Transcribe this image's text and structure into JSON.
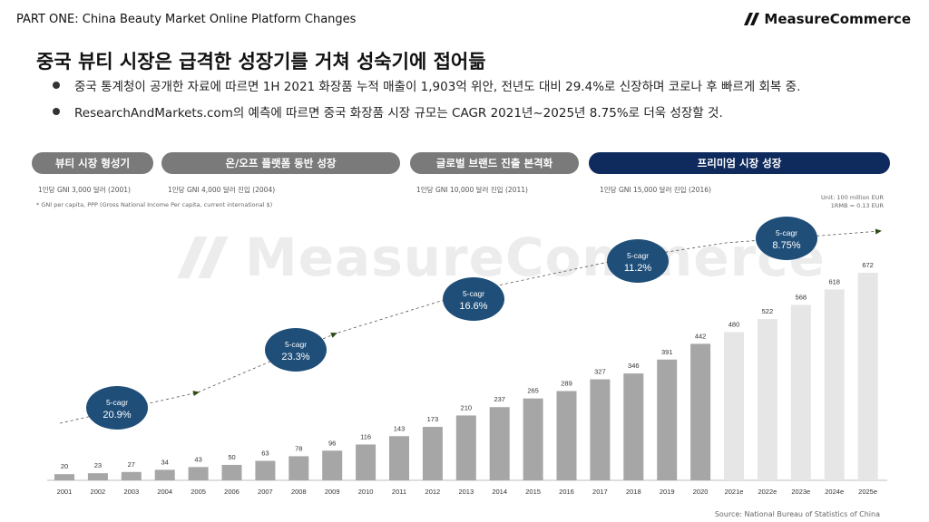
{
  "header": "PART ONE: China Beauty Market Online Platform Changes",
  "logo_text": "MeasureCommerce",
  "watermark_text": "MeasureCommerce",
  "title": "중국 뷰티 시장은 급격한 성장기를 거쳐 성숙기에 접어듦",
  "bullets": [
    "중국 통계청이 공개한 자료에 따르면 1H 2021 화장품 누적 매출이 1,903억 위안, 전년도 대비 29.4%로 신장하며 코로나 후 빠르게 회복 중.",
    "ResearchAndMarkets.com의 예측에 따르면 중국 화장품 시장 규모는 CAGR 2021년~2025년 8.75%로 더욱 성장할 것."
  ],
  "phases": [
    {
      "label": "뷰티 시장  형성기",
      "gni": "1인당 GNI 3,000 달러 (2001)"
    },
    {
      "label": "온/오프 플랫폼 동반 성장",
      "gni": "1인당 GNI 4,000 달러 진입 (2004)"
    },
    {
      "label": "글로벌 브랜드 진출 본격화",
      "gni": "1인당 GNI 10,000 달러 진입 (2011)"
    },
    {
      "label": "프리미엄 시장 성장",
      "gni": "1인당 GNI 15,000 달러 진입 (2016)"
    }
  ],
  "footnote": "* GNI per capita, PPP (Gross National Income  Per capita, current international $)",
  "unit_line1": "Unit:  100 million EUR",
  "unit_line2": "1RMB = 0.13 EUR",
  "source": "Source: National Bureau of Statistics of China",
  "colors": {
    "actual_bar": "#a6a6a6",
    "forecast_bar": "#e6e6e6",
    "cagr_circle": "#1f4e79",
    "navy_phase": "#0f2a5c",
    "gray_phase": "#7a7a7a"
  },
  "chart_data": {
    "type": "bar",
    "categories": [
      "2001",
      "2002",
      "2003",
      "2004",
      "2005",
      "2006",
      "2007",
      "2008",
      "2009",
      "2010",
      "2011",
      "2012",
      "2013",
      "2014",
      "2015",
      "2016",
      "2017",
      "2018",
      "2019",
      "2020",
      "2021e",
      "2022e",
      "2023e",
      "2024e",
      "2025e"
    ],
    "values": [
      20,
      23,
      27,
      34,
      43,
      50,
      63,
      78,
      96,
      116,
      143,
      173,
      210,
      237,
      265,
      289,
      327,
      346,
      391,
      442,
      480,
      522,
      568,
      618,
      672
    ],
    "forecast_from_index": 20,
    "annotations": [
      {
        "label": "5-cagr",
        "value": "20.9%"
      },
      {
        "label": "5-cagr",
        "value": "23.3%"
      },
      {
        "label": "5-cagr",
        "value": "16.6%"
      },
      {
        "label": "5-cagr",
        "value": "11.2%"
      },
      {
        "label": "5-cagr",
        "value": "8.75%"
      }
    ],
    "ylim": [
      0,
      700
    ],
    "grid": false
  }
}
